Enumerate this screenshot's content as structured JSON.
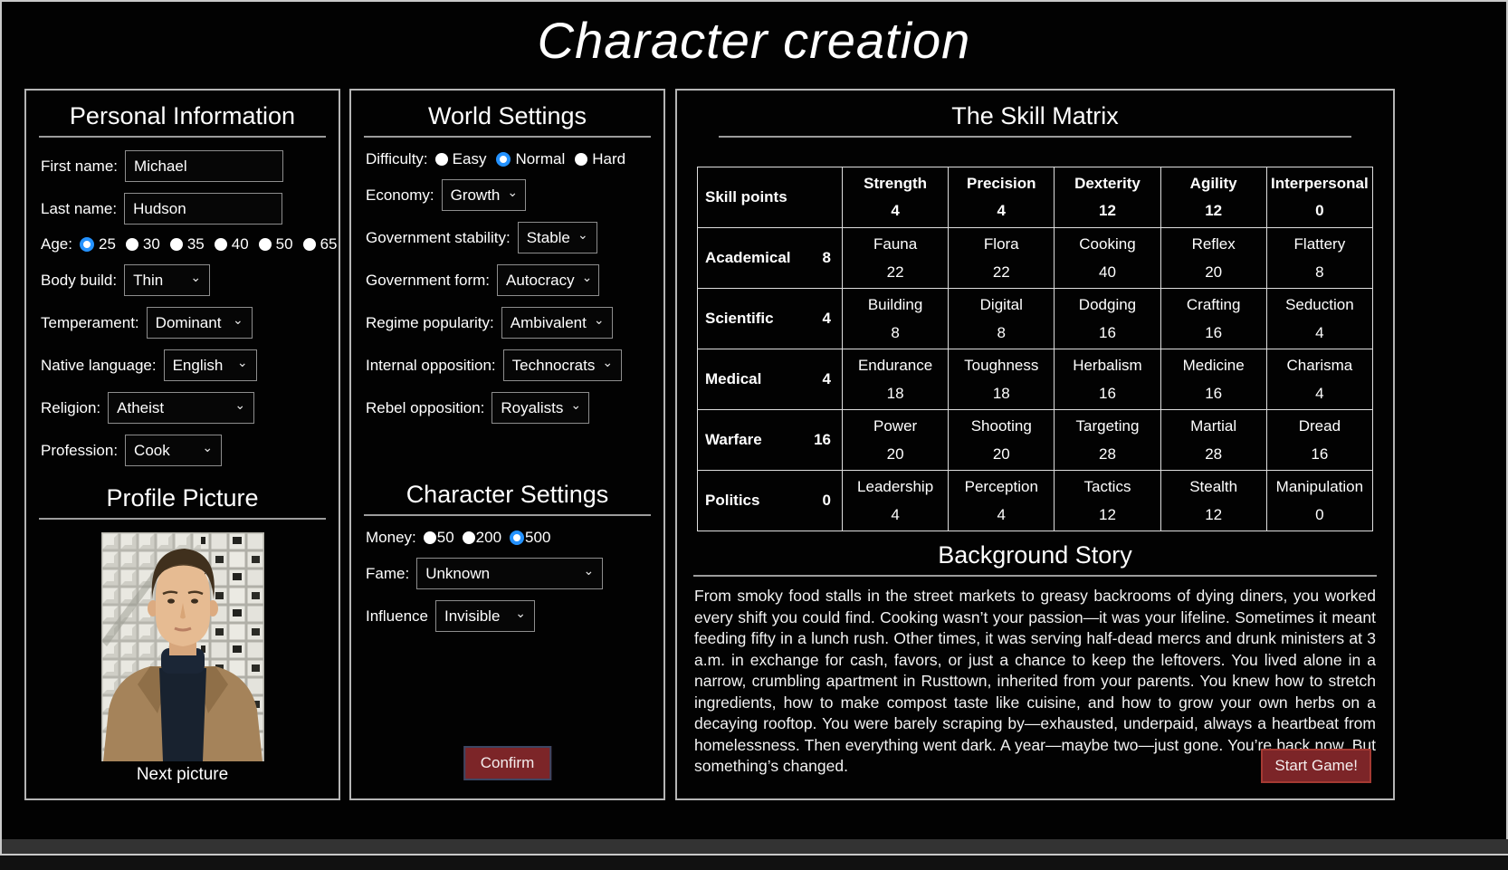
{
  "page": {
    "title": "Character creation"
  },
  "personal": {
    "heading": "Personal Information",
    "first_name": {
      "label": "First name:",
      "value": "Michael"
    },
    "last_name": {
      "label": "Last name:",
      "value": "Hudson"
    },
    "age": {
      "label": "Age:",
      "options": [
        "25",
        "30",
        "35",
        "40",
        "50",
        "65"
      ],
      "selected": "25"
    },
    "body_build": {
      "label": "Body build:",
      "value": "Thin"
    },
    "temperament": {
      "label": "Temperament:",
      "value": "Dominant"
    },
    "native_language": {
      "label": "Native language:",
      "value": "English"
    },
    "religion": {
      "label": "Religion:",
      "value": "Atheist"
    },
    "profession": {
      "label": "Profession:",
      "value": "Cook"
    },
    "profile": {
      "heading": "Profile Picture",
      "next_label": "Next picture"
    }
  },
  "world": {
    "heading": "World Settings",
    "difficulty": {
      "label": "Difficulty:",
      "options": [
        "Easy",
        "Normal",
        "Hard"
      ],
      "selected": "Normal"
    },
    "economy": {
      "label": "Economy:",
      "value": "Growth"
    },
    "government_stability": {
      "label": "Government stability:",
      "value": "Stable"
    },
    "government_form": {
      "label": "Government form:",
      "value": "Autocracy"
    },
    "regime_popularity": {
      "label": "Regime popularity:",
      "value": "Ambivalent"
    },
    "internal_opposition": {
      "label": "Internal opposition:",
      "value": "Technocrats"
    },
    "rebel_opposition": {
      "label": "Rebel opposition:",
      "value": "Royalists"
    }
  },
  "character_settings": {
    "heading": "Character Settings",
    "money": {
      "label": "Money:",
      "options": [
        "50",
        "200",
        "500"
      ],
      "selected": "500"
    },
    "fame": {
      "label": "Fame:",
      "value": "Unknown"
    },
    "influence": {
      "label": "Influence",
      "value": "Invisible"
    },
    "confirm_label": "Confirm"
  },
  "skill_matrix": {
    "heading": "The Skill Matrix",
    "corner_label": "Skill points",
    "columns": [
      {
        "name": "Strength",
        "points": 4
      },
      {
        "name": "Precision",
        "points": 4
      },
      {
        "name": "Dexterity",
        "points": 12
      },
      {
        "name": "Agility",
        "points": 12
      },
      {
        "name": "Interpersonal",
        "points": 0
      }
    ],
    "rows": [
      {
        "name": "Academical",
        "points": 8,
        "skills": [
          {
            "name": "Fauna",
            "value": 22
          },
          {
            "name": "Flora",
            "value": 22
          },
          {
            "name": "Cooking",
            "value": 40
          },
          {
            "name": "Reflex",
            "value": 20
          },
          {
            "name": "Flattery",
            "value": 8
          }
        ]
      },
      {
        "name": "Scientific",
        "points": 4,
        "skills": [
          {
            "name": "Building",
            "value": 8
          },
          {
            "name": "Digital",
            "value": 8
          },
          {
            "name": "Dodging",
            "value": 16
          },
          {
            "name": "Crafting",
            "value": 16
          },
          {
            "name": "Seduction",
            "value": 4
          }
        ]
      },
      {
        "name": "Medical",
        "points": 4,
        "skills": [
          {
            "name": "Endurance",
            "value": 18
          },
          {
            "name": "Toughness",
            "value": 18
          },
          {
            "name": "Herbalism",
            "value": 16
          },
          {
            "name": "Medicine",
            "value": 16
          },
          {
            "name": "Charisma",
            "value": 4
          }
        ]
      },
      {
        "name": "Warfare",
        "points": 16,
        "skills": [
          {
            "name": "Power",
            "value": 20
          },
          {
            "name": "Shooting",
            "value": 20
          },
          {
            "name": "Targeting",
            "value": 28
          },
          {
            "name": "Martial",
            "value": 28
          },
          {
            "name": "Dread",
            "value": 16
          }
        ]
      },
      {
        "name": "Politics",
        "points": 0,
        "skills": [
          {
            "name": "Leadership",
            "value": 4
          },
          {
            "name": "Perception",
            "value": 4
          },
          {
            "name": "Tactics",
            "value": 12
          },
          {
            "name": "Stealth",
            "value": 12
          },
          {
            "name": "Manipulation",
            "value": 0
          }
        ]
      }
    ]
  },
  "background": {
    "heading": "Background Story",
    "text": "From smoky food stalls in the street markets to greasy backrooms of dying diners, you worked every shift you could find. Cooking wasn’t your passion—it was your lifeline. Sometimes it meant feeding fifty in a lunch rush. Other times, it was serving half-dead mercs and drunk ministers at 3 a.m. in exchange for cash, favors, or just a chance to keep the leftovers. You lived alone in a narrow, crumbling apartment in Rusttown, inherited from your parents. You knew how to stretch ingredients, how to make compost taste like cuisine, and how to grow your own herbs on a decaying rooftop. You were barely scraping by—exhausted, underpaid, always a heartbeat from homelessness. Then everything went dark. A year—maybe two—just gone. You’re back now. But something’s changed.",
    "start_label": "Start Game!"
  },
  "colors": {
    "accent_radio_blue": "#2492ff",
    "button_red": "#7c2528",
    "panel_border": "#b5b5b5"
  }
}
